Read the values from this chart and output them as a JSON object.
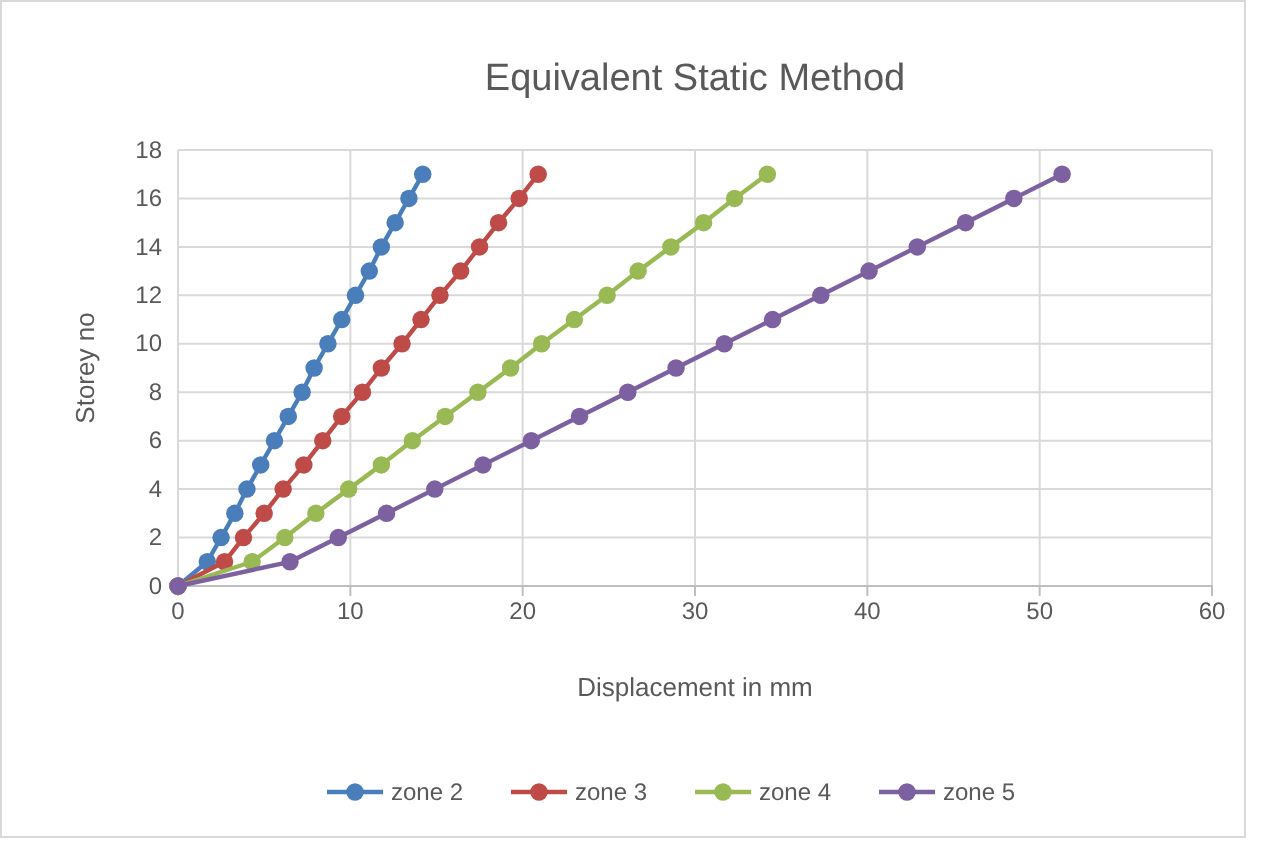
{
  "chart_data": {
    "type": "line",
    "title": "Equivalent Static Method",
    "xlabel": "Displacement in mm",
    "ylabel": "Storey no",
    "xlim": [
      0,
      60
    ],
    "xticks": [
      0,
      10,
      20,
      30,
      40,
      50,
      60
    ],
    "ylim": [
      0,
      18
    ],
    "yticks": [
      0,
      2,
      4,
      6,
      8,
      10,
      12,
      14,
      16,
      18
    ],
    "grid": true,
    "legend": "bottom",
    "marker": "circle",
    "line_style": "solid",
    "series": [
      {
        "name": "zone 2",
        "color": "#4a7ebb",
        "x": [
          0,
          1.7,
          2.5,
          3.3,
          4.0,
          4.8,
          5.6,
          6.4,
          7.2,
          7.9,
          8.7,
          9.5,
          10.3,
          11.1,
          11.8,
          12.6,
          13.4,
          14.2
        ],
        "values": [
          0,
          1,
          2,
          3,
          4,
          5,
          6,
          7,
          8,
          9,
          10,
          11,
          12,
          13,
          14,
          15,
          16,
          17
        ]
      },
      {
        "name": "zone 3",
        "color": "#be4b48",
        "x": [
          0,
          2.7,
          3.8,
          5.0,
          6.1,
          7.3,
          8.4,
          9.5,
          10.7,
          11.8,
          13.0,
          14.1,
          15.2,
          16.4,
          17.5,
          18.6,
          19.8,
          20.9
        ],
        "values": [
          0,
          1,
          2,
          3,
          4,
          5,
          6,
          7,
          8,
          9,
          10,
          11,
          12,
          13,
          14,
          15,
          16,
          17
        ]
      },
      {
        "name": "zone 4",
        "color": "#98b954",
        "x": [
          0,
          4.3,
          6.2,
          8.0,
          9.9,
          11.8,
          13.6,
          15.5,
          17.4,
          19.3,
          21.1,
          23.0,
          24.9,
          26.7,
          28.6,
          30.5,
          32.3,
          34.2
        ],
        "values": [
          0,
          1,
          2,
          3,
          4,
          5,
          6,
          7,
          8,
          9,
          10,
          11,
          12,
          13,
          14,
          15,
          16,
          17
        ]
      },
      {
        "name": "zone 5",
        "color": "#7d60a0",
        "x": [
          0,
          6.5,
          9.3,
          12.1,
          14.9,
          17.7,
          20.5,
          23.3,
          26.1,
          28.9,
          31.7,
          34.5,
          37.3,
          40.1,
          42.9,
          45.7,
          48.5,
          51.3
        ],
        "values": [
          0,
          1,
          2,
          3,
          4,
          5,
          6,
          7,
          8,
          9,
          10,
          11,
          12,
          13,
          14,
          15,
          16,
          17
        ]
      }
    ]
  }
}
